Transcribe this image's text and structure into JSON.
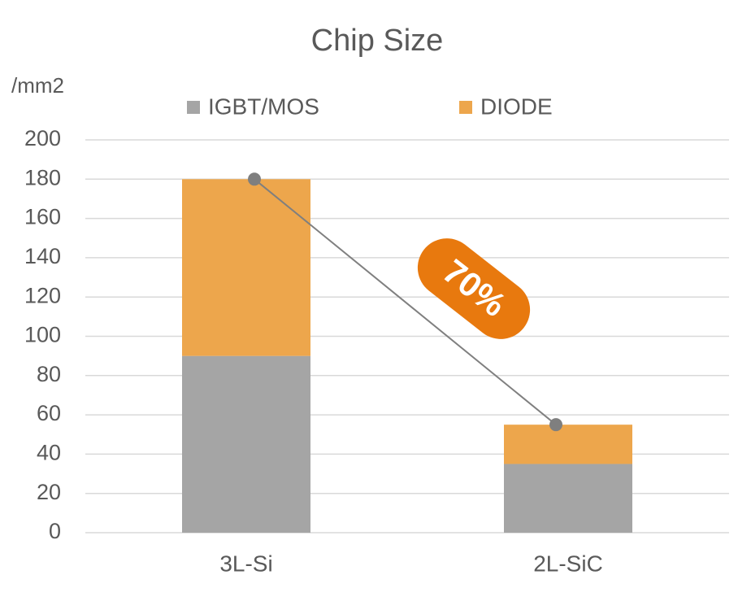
{
  "chart_data": {
    "type": "stacked_bar",
    "title": "Chip Size",
    "ylabel": "/mm2",
    "categories": [
      "3L-Si",
      "2L-SiC"
    ],
    "series": [
      {
        "name": "IGBT/MOS",
        "color": "#a5a5a5",
        "values": [
          90,
          35
        ]
      },
      {
        "name": "DIODE",
        "color": "#eda64c",
        "values": [
          90,
          20
        ]
      }
    ],
    "annotation": "70%",
    "ylim": [
      0,
      200
    ],
    "yticks": [
      0,
      20,
      40,
      60,
      80,
      100,
      120,
      140,
      160,
      180,
      200
    ],
    "grid": true,
    "legend": "top"
  }
}
